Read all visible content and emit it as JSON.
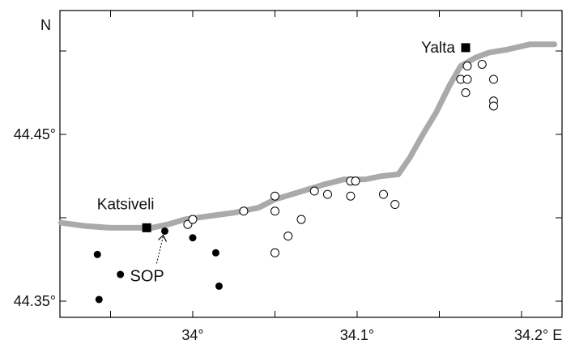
{
  "map": {
    "lat_labels": [
      {
        "value": 44.45,
        "text": "44.45°"
      },
      {
        "value": 44.35,
        "text": "44.35°"
      }
    ],
    "lon_labels": [
      {
        "value": 34.0,
        "text": "34°"
      },
      {
        "value": 34.1,
        "text": "34.1°"
      },
      {
        "value": 34.2,
        "text": "34.2° E"
      }
    ],
    "north_label": "N",
    "lon_ticks": [
      33.95,
      34.0,
      34.05,
      34.1,
      34.15,
      34.2
    ],
    "lat_ticks": [
      44.35,
      44.4,
      44.45,
      44.5
    ],
    "towns": [
      {
        "name": "Katsiveli",
        "lon": 33.972,
        "lat": 44.394
      },
      {
        "name": "Yalta",
        "lon": 34.166,
        "lat": 44.502
      }
    ],
    "sop": {
      "label": "SOP",
      "lon": 33.983,
      "lat": 44.392
    },
    "filled_stations": [
      {
        "lon": 33.942,
        "lat": 44.378
      },
      {
        "lon": 33.956,
        "lat": 44.366
      },
      {
        "lon": 33.943,
        "lat": 44.351
      },
      {
        "lon": 34.0,
        "lat": 44.388
      },
      {
        "lon": 34.014,
        "lat": 44.379
      },
      {
        "lon": 34.016,
        "lat": 44.359
      }
    ],
    "open_stations": [
      {
        "lon": 33.997,
        "lat": 44.396
      },
      {
        "lon": 34.0,
        "lat": 44.399
      },
      {
        "lon": 34.031,
        "lat": 44.404
      },
      {
        "lon": 34.05,
        "lat": 44.413
      },
      {
        "lon": 34.05,
        "lat": 44.404
      },
      {
        "lon": 34.066,
        "lat": 44.399
      },
      {
        "lon": 34.058,
        "lat": 44.389
      },
      {
        "lon": 34.05,
        "lat": 44.379
      },
      {
        "lon": 34.074,
        "lat": 44.416
      },
      {
        "lon": 34.082,
        "lat": 44.414
      },
      {
        "lon": 34.096,
        "lat": 44.422
      },
      {
        "lon": 34.099,
        "lat": 44.422
      },
      {
        "lon": 34.096,
        "lat": 44.413
      },
      {
        "lon": 34.116,
        "lat": 44.414
      },
      {
        "lon": 34.123,
        "lat": 44.408
      },
      {
        "lon": 34.167,
        "lat": 44.491
      },
      {
        "lon": 34.176,
        "lat": 44.492
      },
      {
        "lon": 34.163,
        "lat": 44.483
      },
      {
        "lon": 34.167,
        "lat": 44.483
      },
      {
        "lon": 34.166,
        "lat": 44.475
      },
      {
        "lon": 34.183,
        "lat": 44.483
      },
      {
        "lon": 34.183,
        "lat": 44.47
      },
      {
        "lon": 34.183,
        "lat": 44.467
      }
    ],
    "coastline": [
      [
        33.92,
        44.397
      ],
      [
        33.935,
        44.395
      ],
      [
        33.95,
        44.394
      ],
      [
        33.965,
        44.394
      ],
      [
        33.975,
        44.394
      ],
      [
        33.985,
        44.396
      ],
      [
        33.995,
        44.399
      ],
      [
        34.01,
        44.401
      ],
      [
        34.025,
        44.403
      ],
      [
        34.04,
        44.406
      ],
      [
        34.05,
        44.411
      ],
      [
        34.06,
        44.414
      ],
      [
        34.07,
        44.417
      ],
      [
        34.08,
        44.42
      ],
      [
        34.092,
        44.423
      ],
      [
        34.105,
        44.423
      ],
      [
        34.115,
        44.425
      ],
      [
        34.125,
        44.426
      ],
      [
        34.132,
        44.436
      ],
      [
        34.14,
        44.45
      ],
      [
        34.148,
        44.463
      ],
      [
        34.156,
        44.479
      ],
      [
        34.163,
        44.491
      ],
      [
        34.172,
        44.496
      ],
      [
        34.18,
        44.499
      ],
      [
        34.192,
        44.501
      ],
      [
        34.205,
        44.504
      ],
      [
        34.215,
        44.504
      ],
      [
        34.22,
        44.504
      ]
    ],
    "colors": {
      "coast": "#aaaaaa",
      "frame": "#000000",
      "station": "#000000",
      "town": "#000000"
    }
  }
}
